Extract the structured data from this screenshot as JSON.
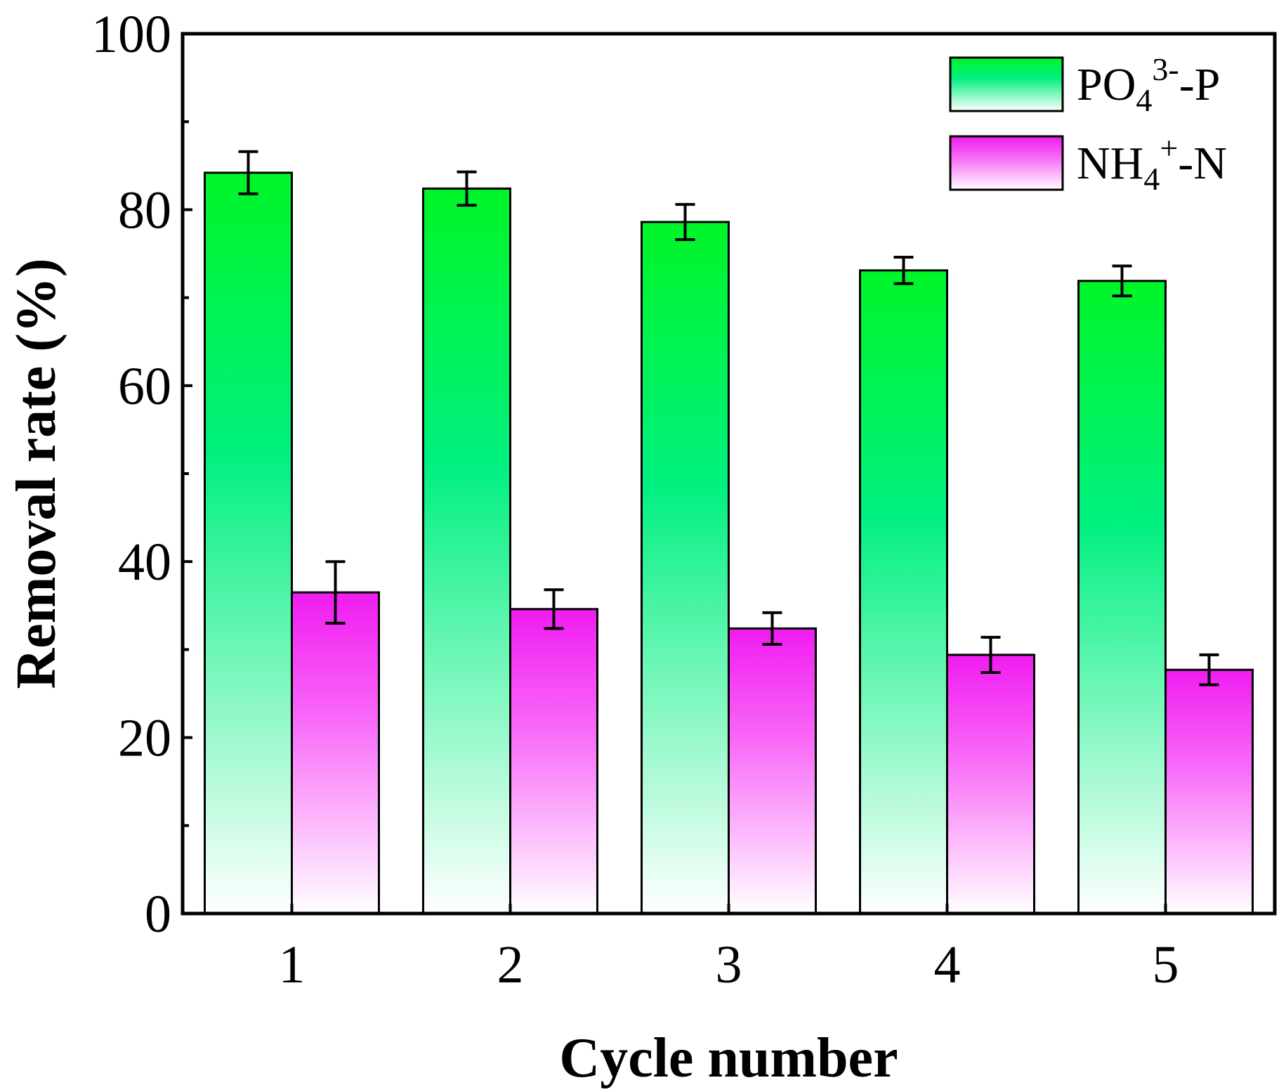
{
  "chart_data": {
    "type": "bar",
    "title": "",
    "xlabel": "Cycle number",
    "ylabel": "Removal rate (%)",
    "ylim": [
      0,
      100
    ],
    "yticks": [
      0,
      20,
      40,
      60,
      80,
      100
    ],
    "categories": [
      "1",
      "2",
      "3",
      "4",
      "5"
    ],
    "legend_position": "top-right",
    "series": [
      {
        "name": "PO4 3- -P",
        "legend": {
          "base": "PO",
          "sub": "4",
          "sup": "3-",
          "tail": "-P"
        },
        "values": [
          84.2,
          82.4,
          78.6,
          73.1,
          71.9
        ],
        "errors": [
          2.4,
          1.9,
          2.0,
          1.5,
          1.7
        ],
        "color_top": "#00f528",
        "color_mid": "#00f080",
        "color_bottom": "#ffffff"
      },
      {
        "name": "NH4 + -N",
        "legend": {
          "base": "NH",
          "sub": "4",
          "sup": "+",
          "tail": "-N"
        },
        "values": [
          36.5,
          34.6,
          32.4,
          29.4,
          27.7
        ],
        "errors": [
          3.5,
          2.2,
          1.8,
          2.0,
          1.7
        ],
        "color_top": "#f01cf0",
        "color_mid": "#f866f8",
        "color_bottom": "#ffffff"
      }
    ]
  }
}
